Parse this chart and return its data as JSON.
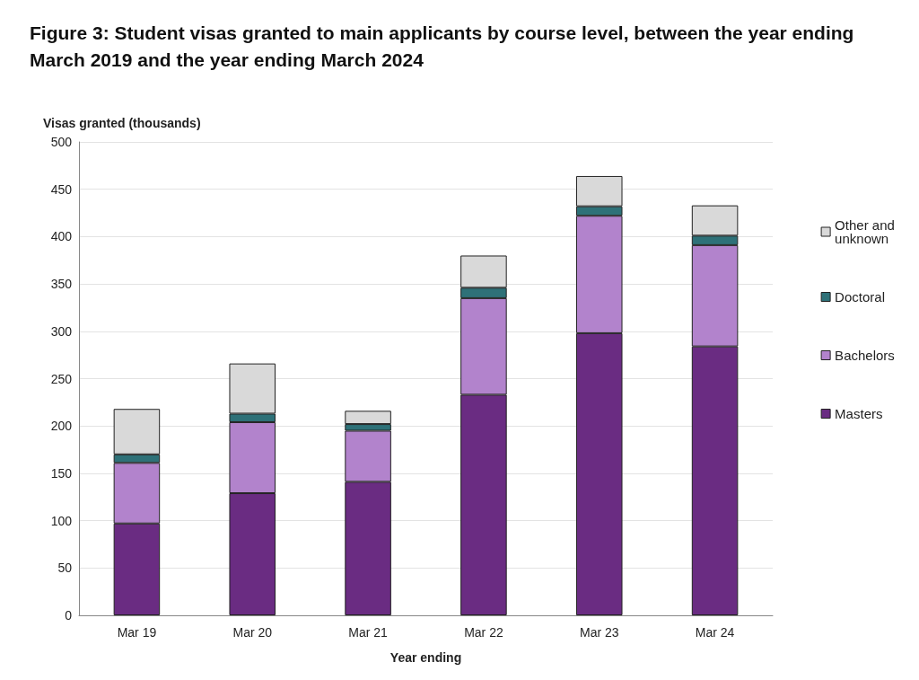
{
  "chart_data": {
    "type": "bar",
    "title": "Figure 3: Student visas granted to main applicants by course level, between the year ending March 2019 and the year ending March 2024",
    "xlabel": "Year ending",
    "ylabel": "Visas granted (thousands)",
    "categories": [
      "Mar 19",
      "Mar 20",
      "Mar 21",
      "Mar 22",
      "Mar 23",
      "Mar 24"
    ],
    "stacked": true,
    "series": [
      {
        "name": "Masters",
        "color": "#6a2c82",
        "values": [
          97,
          129,
          141,
          233,
          298,
          284
        ]
      },
      {
        "name": "Bachelors",
        "color": "#b283cc",
        "values": [
          64,
          75,
          54,
          102,
          124,
          107
        ]
      },
      {
        "name": "Doctoral",
        "color": "#2e7178",
        "values": [
          9,
          9,
          7,
          11,
          10,
          10
        ]
      },
      {
        "name": "Other and unknown",
        "color": "#d9d9d9",
        "values": [
          48,
          53,
          14,
          34,
          32,
          32
        ]
      }
    ],
    "ylim": [
      0,
      500
    ],
    "yticks": [
      0,
      50,
      100,
      150,
      200,
      250,
      300,
      350,
      400,
      450,
      500
    ],
    "grid": "y",
    "legend": "right"
  }
}
